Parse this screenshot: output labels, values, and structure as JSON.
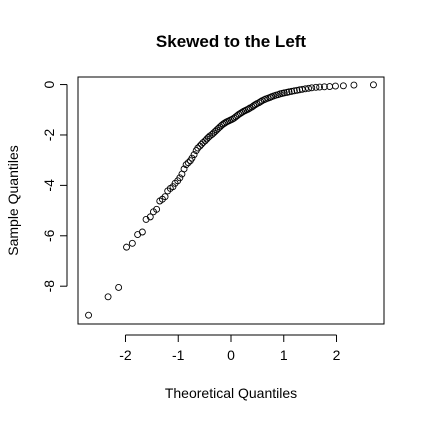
{
  "chart_data": {
    "type": "scatter",
    "title": "Skewed to the Left",
    "xlabel": "Theoretical Quantiles",
    "ylabel": "Sample Quantiles",
    "xlim": [
      -2.9,
      2.9
    ],
    "ylim": [
      -9.5,
      0.3
    ],
    "x_ticks": [
      -2,
      -1,
      0,
      1,
      2
    ],
    "y_ticks": [
      0,
      -2,
      -4,
      -6,
      -8
    ],
    "x_tick_labels": [
      "-2",
      "-1",
      "0",
      "1",
      "2"
    ],
    "y_tick_labels": [
      "0",
      "-2",
      "-4",
      "-6",
      "-8"
    ],
    "grid": false,
    "marker": "open-circle",
    "point_color": "#000000",
    "series": [
      {
        "x": [
          -2.7,
          -2.33,
          -2.13,
          -1.98,
          -1.87,
          -1.77,
          -1.68,
          -1.61,
          -1.53,
          -1.47,
          -1.41,
          -1.35,
          -1.3,
          -1.25,
          -1.2,
          -1.15,
          -1.1,
          -1.06,
          -1.01,
          -0.97,
          -0.93,
          -0.89,
          -0.85,
          -0.81,
          -0.77,
          -0.74,
          -0.7,
          -0.66,
          -0.63,
          -0.59,
          -0.56,
          -0.53,
          -0.49,
          -0.46,
          -0.43,
          -0.4,
          -0.36,
          -0.33,
          -0.3,
          -0.27,
          -0.24,
          -0.21,
          -0.18,
          -0.15,
          -0.12,
          -0.09,
          -0.06,
          -0.03,
          0.0,
          0.03,
          0.06,
          0.09,
          0.12,
          0.15,
          0.18,
          0.21,
          0.24,
          0.27,
          0.3,
          0.33,
          0.36,
          0.4,
          0.43,
          0.46,
          0.49,
          0.53,
          0.56,
          0.59,
          0.63,
          0.66,
          0.7,
          0.74,
          0.77,
          0.81,
          0.85,
          0.89,
          0.93,
          0.97,
          1.01,
          1.06,
          1.1,
          1.15,
          1.2,
          1.25,
          1.3,
          1.35,
          1.41,
          1.47,
          1.53,
          1.61,
          1.68,
          1.77,
          1.87,
          1.98,
          2.13,
          2.33,
          2.7
        ],
        "y": [
          -9.15,
          -8.42,
          -8.05,
          -6.45,
          -6.3,
          -5.95,
          -5.85,
          -5.35,
          -5.25,
          -5.05,
          -4.95,
          -4.62,
          -4.55,
          -4.45,
          -4.22,
          -4.12,
          -4.05,
          -3.92,
          -3.82,
          -3.7,
          -3.55,
          -3.35,
          -3.18,
          -3.1,
          -3.02,
          -2.92,
          -2.78,
          -2.62,
          -2.52,
          -2.44,
          -2.37,
          -2.3,
          -2.23,
          -2.16,
          -2.1,
          -2.04,
          -1.98,
          -1.92,
          -1.86,
          -1.8,
          -1.74,
          -1.68,
          -1.62,
          -1.57,
          -1.53,
          -1.49,
          -1.46,
          -1.43,
          -1.4,
          -1.37,
          -1.33,
          -1.28,
          -1.23,
          -1.18,
          -1.14,
          -1.1,
          -1.06,
          -1.03,
          -1.0,
          -0.97,
          -0.93,
          -0.89,
          -0.84,
          -0.8,
          -0.76,
          -0.72,
          -0.68,
          -0.64,
          -0.6,
          -0.57,
          -0.54,
          -0.51,
          -0.48,
          -0.45,
          -0.42,
          -0.4,
          -0.37,
          -0.35,
          -0.33,
          -0.31,
          -0.29,
          -0.27,
          -0.25,
          -0.23,
          -0.21,
          -0.19,
          -0.17,
          -0.15,
          -0.13,
          -0.11,
          -0.1,
          -0.09,
          -0.08,
          -0.06,
          -0.05,
          -0.02,
          -0.01
        ]
      }
    ]
  }
}
